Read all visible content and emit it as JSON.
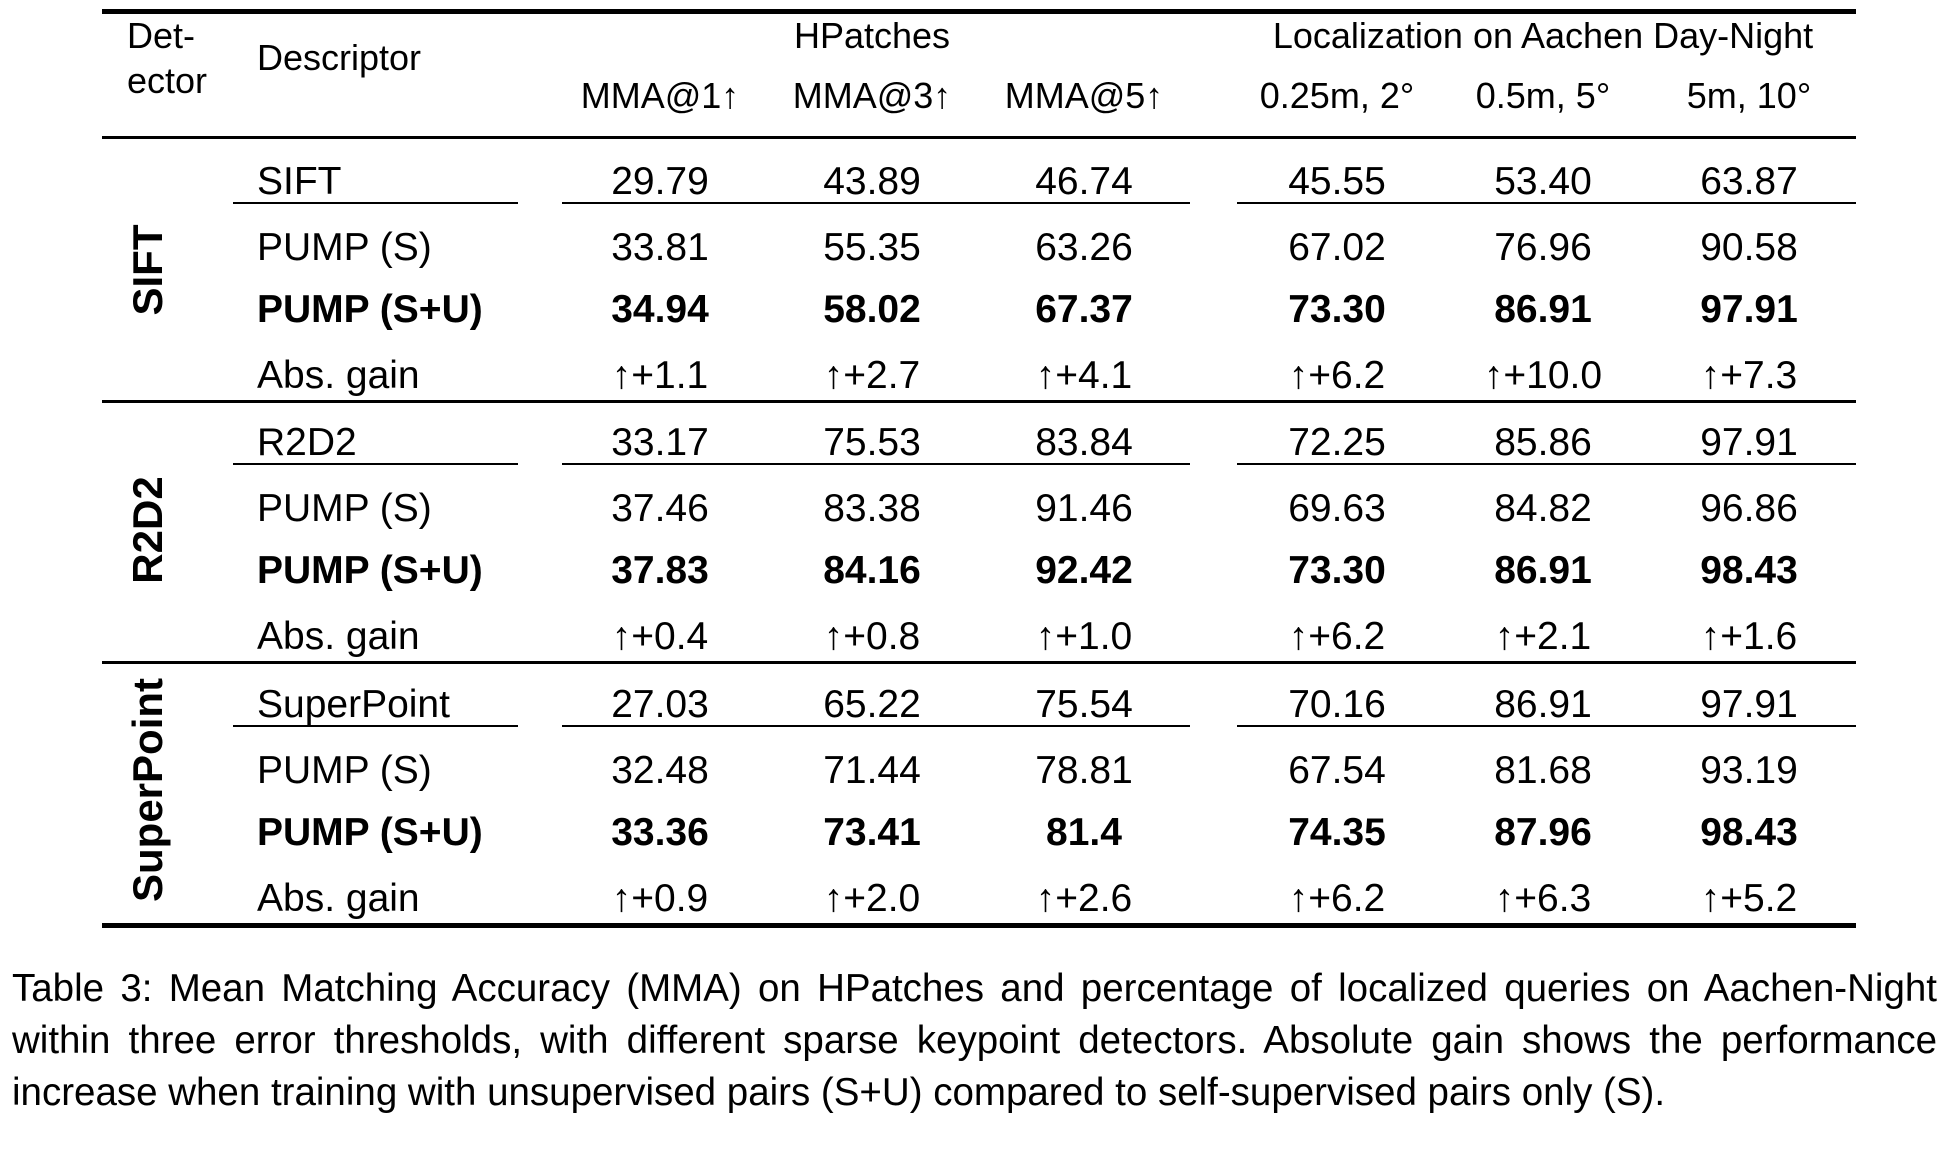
{
  "table": {
    "headers": {
      "detector_line1": "Det-",
      "detector_line2": "ector",
      "descriptor": "Descriptor",
      "hpatches": "HPatches",
      "aachen": "Localization on Aachen Day-Night",
      "columns": [
        "MMA@1↑",
        "MMA@3↑",
        "MMA@5↑",
        "0.25m, 2°",
        "0.5m, 5°",
        "5m, 10°"
      ]
    },
    "groups": [
      {
        "detector": "SIFT",
        "rows": [
          {
            "descriptor": "SIFT",
            "values": [
              "29.79",
              "43.89",
              "46.74",
              "45.55",
              "53.40",
              "63.87"
            ],
            "bold": false
          },
          {
            "descriptor": "PUMP (S)",
            "values": [
              "33.81",
              "55.35",
              "63.26",
              "67.02",
              "76.96",
              "90.58"
            ],
            "bold": false
          },
          {
            "descriptor": "PUMP (S+U)",
            "values": [
              "34.94",
              "58.02",
              "67.37",
              "73.30",
              "86.91",
              "97.91"
            ],
            "bold": true
          },
          {
            "descriptor": "Abs. gain",
            "values": [
              "↑+1.1",
              "↑+2.7",
              "↑+4.1",
              "↑+6.2",
              "↑+10.0",
              "↑+7.3"
            ],
            "bold": false
          }
        ]
      },
      {
        "detector": "R2D2",
        "rows": [
          {
            "descriptor": "R2D2",
            "values": [
              "33.17",
              "75.53",
              "83.84",
              "72.25",
              "85.86",
              "97.91"
            ],
            "bold": false
          },
          {
            "descriptor": "PUMP (S)",
            "values": [
              "37.46",
              "83.38",
              "91.46",
              "69.63",
              "84.82",
              "96.86"
            ],
            "bold": false
          },
          {
            "descriptor": "PUMP (S+U)",
            "values": [
              "37.83",
              "84.16",
              "92.42",
              "73.30",
              "86.91",
              "98.43"
            ],
            "bold": true
          },
          {
            "descriptor": "Abs. gain",
            "values": [
              "↑+0.4",
              "↑+0.8",
              "↑+1.0",
              "↑+6.2",
              "↑+2.1",
              "↑+1.6"
            ],
            "bold": false
          }
        ]
      },
      {
        "detector": "SuperPoint",
        "rows": [
          {
            "descriptor": "SuperPoint",
            "values": [
              "27.03",
              "65.22",
              "75.54",
              "70.16",
              "86.91",
              "97.91"
            ],
            "bold": false
          },
          {
            "descriptor": "PUMP (S)",
            "values": [
              "32.48",
              "71.44",
              "78.81",
              "67.54",
              "81.68",
              "93.19"
            ],
            "bold": false
          },
          {
            "descriptor": "PUMP (S+U)",
            "values": [
              "33.36",
              "73.41",
              "81.4",
              "74.35",
              "87.96",
              "98.43"
            ],
            "bold": true
          },
          {
            "descriptor": "Abs. gain",
            "values": [
              "↑+0.9",
              "↑+2.0",
              "↑+2.6",
              "↑+6.2",
              "↑+6.3",
              "↑+5.2"
            ],
            "bold": false
          }
        ]
      }
    ]
  },
  "caption": "Table 3: Mean Matching Accuracy (MMA) on HPatches and percentage of localized queries on Aachen-Night within three error thresholds, with different sparse keypoint detectors. Absolute gain shows the performance increase when training with unsupervised pairs (S+U) compared to self-supervised pairs only (S)."
}
